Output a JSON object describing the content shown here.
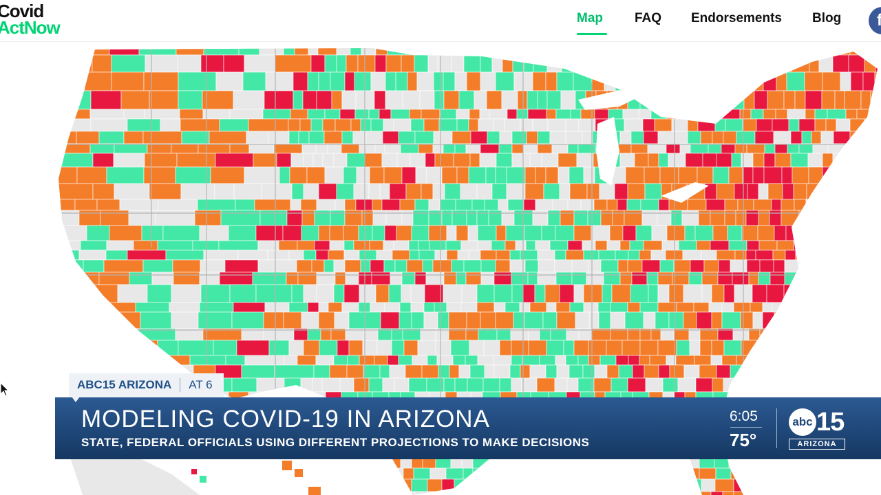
{
  "site": {
    "logo_line1": "Covid",
    "logo_line2": "ActNow",
    "brand_color": "#00d474",
    "nav": [
      {
        "label": "Map",
        "active": true
      },
      {
        "label": "FAQ",
        "active": false
      },
      {
        "label": "Endorsements",
        "active": false
      },
      {
        "label": "Blog",
        "active": false
      }
    ],
    "social_icon": "facebook-icon"
  },
  "map": {
    "legend_colors": {
      "critical": "#e8173f",
      "high": "#f47d2a",
      "low": "#44e8a6",
      "no_data": "#e8e8e8"
    },
    "cursor_icon": "mouse-pointer-icon"
  },
  "broadcast": {
    "channel_tag": "ABC15 ARIZONA",
    "segment_tag": "AT 6",
    "headline": "MODELING COVID-19 IN ARIZONA",
    "subheadline": "STATE, FEDERAL OFFICIALS USING DIFFERENT PROJECTIONS TO MAKE DECISIONS",
    "time": "6:05",
    "temperature": "75°",
    "station_logo_abc": "abc",
    "station_logo_number": "15",
    "station_logo_sub": "ARIZONA"
  }
}
